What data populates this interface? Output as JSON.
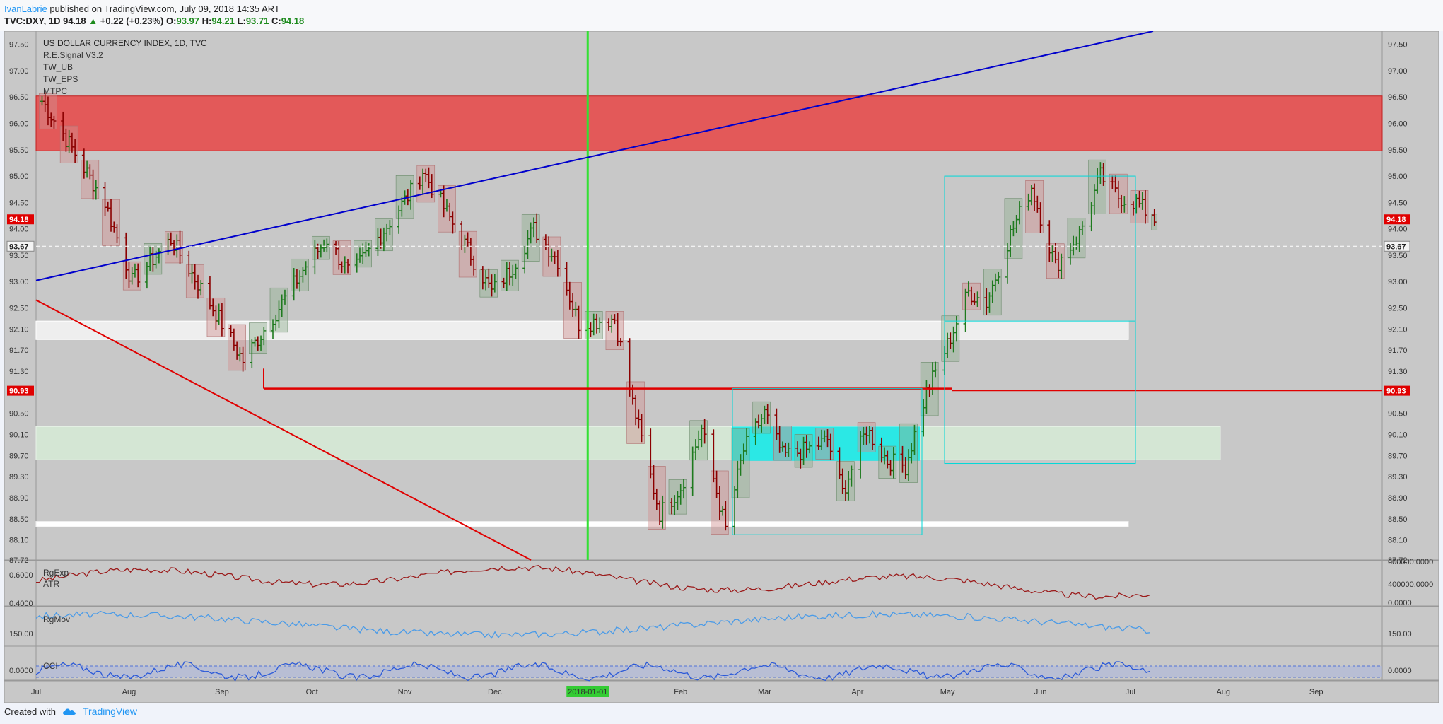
{
  "header": {
    "author": "IvanLabrie",
    "published_text": " published on TradingView.com, July 09, 2018 14:35 ART",
    "symbol": "TVC:DXY, 1D",
    "last": "94.18",
    "change": "+0.22 (+0.23%)",
    "o_label": "O:",
    "o": "93.97",
    "h_label": "H:",
    "h": "94.21",
    "l_label": "L:",
    "l": "93.71",
    "c_label": "C:",
    "c": "94.18"
  },
  "legend": {
    "title": "US DOLLAR CURRENCY INDEX, 1D, TVC",
    "studies": [
      "R.E.Signal V3.2",
      "TW_UB",
      "TW_EPS",
      "MTPC"
    ]
  },
  "footer": {
    "created_with": "Created with",
    "brand": "TradingView"
  },
  "colors": {
    "bg": "#c8c8c8",
    "up": "#1e7a1e",
    "down": "#8b0000",
    "trendline_blue": "#0000cc",
    "trendline_red": "#e00000",
    "resistance_zone": "#e84545",
    "support_zone": "#d4e6d4",
    "cyan_box": "#00d8d8",
    "atr": "#9b1b1b",
    "rgmov": "#4a9be8",
    "cci": "#2c5ad8"
  },
  "chart_data": [
    {
      "type": "candlestick",
      "title": "US DOLLAR CURRENCY INDEX, 1D, TVC",
      "price_ticks": [
        "97.50",
        "97.00",
        "96.50",
        "96.00",
        "95.50",
        "95.00",
        "94.50",
        "94.00",
        "93.50",
        "93.00",
        "92.50",
        "92.10",
        "91.70",
        "91.30",
        "90.93",
        "90.50",
        "90.10",
        "89.70",
        "89.30",
        "88.90",
        "88.50",
        "88.10",
        "87.72"
      ],
      "ylim": [
        87.72,
        97.75
      ],
      "time_ticks": [
        "Jul",
        "Aug",
        "Sep",
        "Oct",
        "Nov",
        "Dec",
        "2018-01-01",
        "Feb",
        "Mar",
        "Apr",
        "May",
        "Jun",
        "Jul",
        "Aug",
        "Sep"
      ],
      "xlim": [
        "2017-07-01",
        "2018-09-23"
      ],
      "price_badges": [
        "94.18",
        "93.67",
        "90.93"
      ],
      "anchors": [
        [
          "2017-07-01",
          96.6
        ],
        [
          "2017-07-10",
          95.8
        ],
        [
          "2017-07-24",
          94.5
        ],
        [
          "2017-08-02",
          93.0
        ],
        [
          "2017-08-15",
          93.8
        ],
        [
          "2017-08-29",
          92.5
        ],
        [
          "2017-09-08",
          91.5
        ],
        [
          "2017-09-20",
          92.5
        ],
        [
          "2017-09-29",
          93.3
        ],
        [
          "2017-10-06",
          93.8
        ],
        [
          "2017-10-14",
          93.1
        ],
        [
          "2017-10-24",
          93.9
        ],
        [
          "2017-11-03",
          94.7
        ],
        [
          "2017-11-07",
          95.1
        ],
        [
          "2017-11-14",
          94.4
        ],
        [
          "2017-11-22",
          93.6
        ],
        [
          "2017-11-30",
          92.8
        ],
        [
          "2017-12-06",
          93.2
        ],
        [
          "2017-12-14",
          94.0
        ],
        [
          "2017-12-22",
          93.4
        ],
        [
          "2017-12-29",
          92.2
        ],
        [
          "2018-01-10",
          92.3
        ],
        [
          "2018-01-16",
          90.7
        ],
        [
          "2018-01-25",
          88.6
        ],
        [
          "2018-02-01",
          89.1
        ],
        [
          "2018-02-08",
          90.2
        ],
        [
          "2018-02-16",
          88.3
        ],
        [
          "2018-02-22",
          89.8
        ],
        [
          "2018-03-01",
          90.5
        ],
        [
          "2018-03-07",
          89.7
        ],
        [
          "2018-03-15",
          89.8
        ],
        [
          "2018-03-22",
          90.0
        ],
        [
          "2018-03-27",
          89.0
        ],
        [
          "2018-04-04",
          90.2
        ],
        [
          "2018-04-11",
          89.6
        ],
        [
          "2018-04-17",
          89.5
        ],
        [
          "2018-04-24",
          90.9
        ],
        [
          "2018-05-01",
          91.8
        ],
        [
          "2018-05-08",
          92.8
        ],
        [
          "2018-05-14",
          92.6
        ],
        [
          "2018-05-22",
          93.9
        ],
        [
          "2018-05-29",
          94.8
        ],
        [
          "2018-06-06",
          93.3
        ],
        [
          "2018-06-14",
          93.9
        ],
        [
          "2018-06-21",
          95.0
        ],
        [
          "2018-06-27",
          94.6
        ],
        [
          "2018-07-03",
          94.5
        ],
        [
          "2018-07-09",
          94.18
        ]
      ],
      "indicators": [
        {
          "name": "RgExp",
          "label2": "ATR",
          "ticks": [
            "0.6000",
            "0.4000"
          ],
          "right_ticks": [
            "600000.0000",
            "400000.0000",
            "0.0000"
          ]
        },
        {
          "name": "RgMov",
          "ticks": [
            "150.00"
          ],
          "right_ticks": [
            "150.00"
          ]
        },
        {
          "name": "CCI",
          "ticks": [
            "0.0000"
          ],
          "right_ticks": [
            "0.0000"
          ]
        }
      ]
    }
  ]
}
